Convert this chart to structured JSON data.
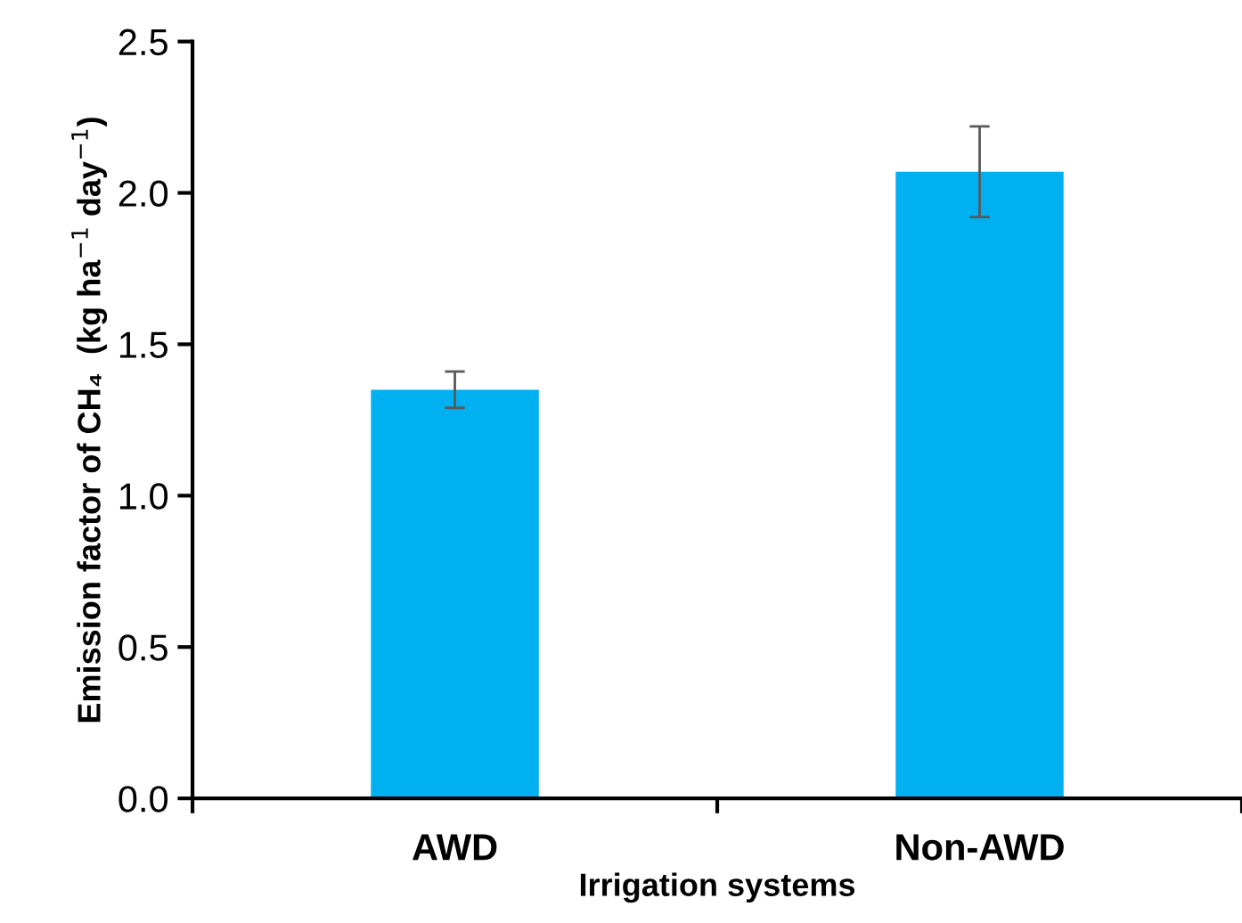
{
  "chart_data": {
    "type": "bar",
    "categories": [
      "AWD",
      "Non-AWD"
    ],
    "values": [
      1.35,
      2.07
    ],
    "errors": [
      [
        1.29,
        1.41
      ],
      [
        1.92,
        2.22
      ]
    ],
    "color": "#00b0f0",
    "xlabel": "Irrigation systems",
    "ylabel": "Emission factor of CH₄  (kg ha$^{−1}$ day$^{−1}$)",
    "ylim": [
      0,
      2.5
    ],
    "yticks": [
      {
        "value": 0,
        "label": "0.0"
      },
      {
        "value": 0.5,
        "label": "0.5"
      },
      {
        "value": 1,
        "label": "1.0"
      },
      {
        "value": 1.5,
        "label": "1.5"
      },
      {
        "value": 2,
        "label": "2.0"
      },
      {
        "value": 2.5,
        "label": "2.5"
      }
    ],
    "grid": false,
    "legend": false
  }
}
